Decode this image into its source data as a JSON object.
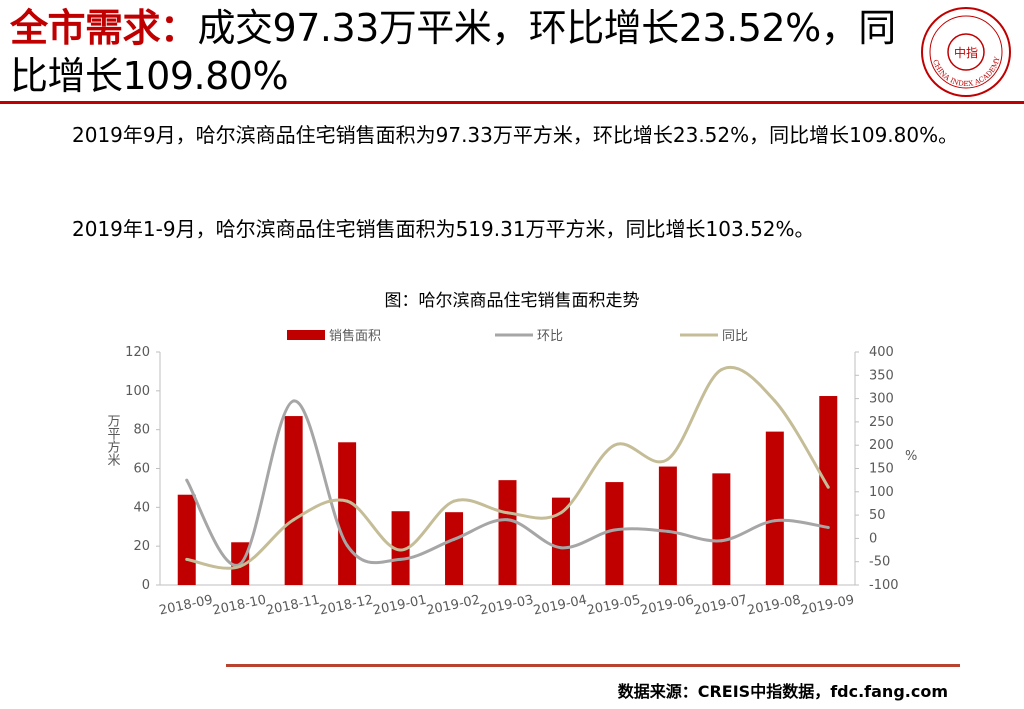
{
  "header": {
    "title_keyword": "全市需求：",
    "title_rest": "成交97.33万平米，环比增长23.52%，同比增长109.80%"
  },
  "logo": {
    "icon": "china-index-academy-seal",
    "center_text": "中指",
    "ring_text": "CHINA INDEX ACADEMY",
    "color": "#c00000"
  },
  "body": {
    "paragraph1": "2019年9月，哈尔滨商品住宅销售面积为97.33万平方米，环比增长23.52%，同比增长109.80%。",
    "paragraph2": "2019年1-9月，哈尔滨商品住宅销售面积为519.31万平方米，同比增长103.52%。"
  },
  "chart_caption": "图：哈尔滨商品住宅销售面积走势",
  "chart_data": {
    "type": "bar",
    "categories": [
      "2018-09",
      "2018-10",
      "2018-11",
      "2018-12",
      "2019-01",
      "2019-02",
      "2019-03",
      "2019-04",
      "2019-05",
      "2019-06",
      "2019-07",
      "2019-08",
      "2019-09"
    ],
    "series": [
      {
        "name": "销售面积",
        "type": "bar",
        "axis": "left",
        "color": "#c00000",
        "values": [
          46.5,
          22,
          87,
          73.5,
          38,
          37.5,
          54,
          45,
          53,
          61,
          57.5,
          79,
          97.33
        ]
      },
      {
        "name": "环比",
        "type": "line",
        "axis": "right",
        "color": "#a6a6a6",
        "values": [
          125,
          -55,
          295,
          -15,
          -45,
          -2,
          40,
          -20,
          18,
          15,
          -5,
          38,
          23.52
        ]
      },
      {
        "name": "同比",
        "type": "line",
        "axis": "right",
        "color": "#c4bd97",
        "values": [
          -45,
          -60,
          40,
          80,
          -25,
          80,
          55,
          55,
          200,
          170,
          362,
          295,
          109.8
        ]
      }
    ],
    "ylabel": "万平方米",
    "y2label": "%",
    "ylim": [
      0,
      120
    ],
    "yticks": [
      0,
      20,
      40,
      60,
      80,
      100,
      120
    ],
    "y2lim": [
      -100,
      400
    ],
    "y2ticks": [
      -100,
      -50,
      0,
      50,
      100,
      150,
      200,
      250,
      300,
      350,
      400
    ],
    "grid": false,
    "legend": "top"
  },
  "footer": {
    "source": "数据来源：CREIS中指数据，fdc.fang.com"
  }
}
